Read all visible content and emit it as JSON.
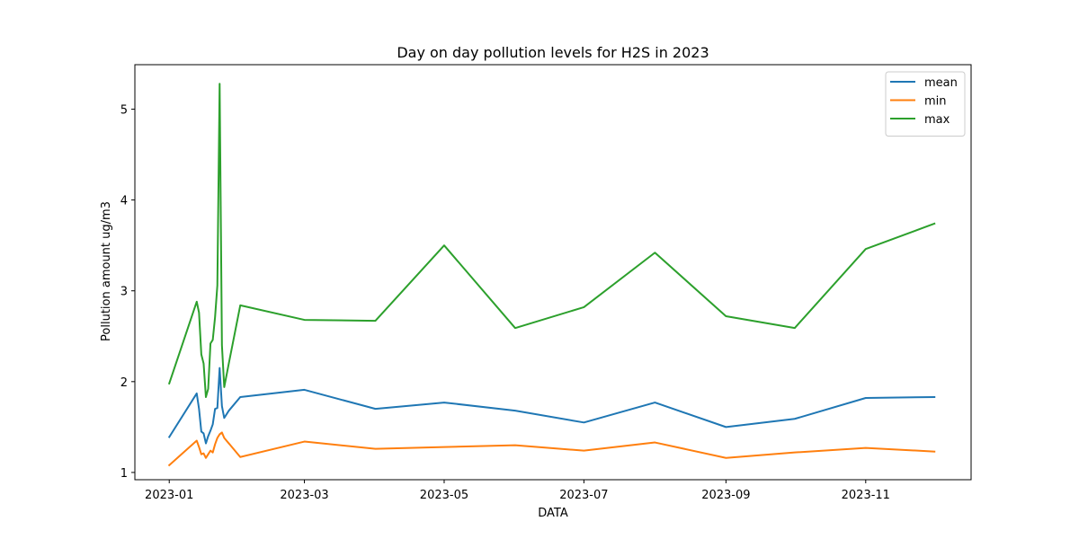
{
  "chart_data": {
    "type": "line",
    "title": "Day on day pollution levels for H2S in 2023",
    "xlabel": "DATA",
    "ylabel": "Pollution amount ug/m3",
    "x_ticks": [
      "2023-01",
      "2023-03",
      "2023-05",
      "2023-07",
      "2023-09",
      "2023-11"
    ],
    "y_ticks": [
      1,
      2,
      3,
      4,
      5
    ],
    "xlim": [
      "2022-12-17",
      "2023-12-17"
    ],
    "ylim": [
      0.92,
      5.49
    ],
    "grid": false,
    "legend_position": "top-right",
    "x": [
      "2023-01-01",
      "2023-01-13",
      "2023-01-14",
      "2023-01-15",
      "2023-01-16",
      "2023-01-17",
      "2023-01-18",
      "2023-01-19",
      "2023-01-20",
      "2023-01-21",
      "2023-01-22",
      "2023-01-23",
      "2023-01-24",
      "2023-01-25",
      "2023-01-27",
      "2023-02-01",
      "2023-03-01",
      "2023-04-01",
      "2023-05-01",
      "2023-06-01",
      "2023-07-01",
      "2023-08-01",
      "2023-09-01",
      "2023-10-01",
      "2023-11-01",
      "2023-12-01"
    ],
    "series": [
      {
        "name": "mean",
        "color": "#1f77b4",
        "values": [
          1.39,
          1.87,
          1.7,
          1.45,
          1.43,
          1.32,
          1.4,
          1.46,
          1.53,
          1.7,
          1.71,
          2.15,
          1.73,
          1.6,
          1.68,
          1.83,
          1.91,
          1.7,
          1.77,
          1.68,
          1.55,
          1.77,
          1.5,
          1.59,
          1.82,
          1.83
        ]
      },
      {
        "name": "min",
        "color": "#ff7f0e",
        "values": [
          1.08,
          1.35,
          1.28,
          1.2,
          1.21,
          1.16,
          1.2,
          1.24,
          1.22,
          1.31,
          1.38,
          1.42,
          1.44,
          1.38,
          1.32,
          1.17,
          1.34,
          1.26,
          1.28,
          1.3,
          1.24,
          1.33,
          1.16,
          1.22,
          1.27,
          1.23
        ]
      },
      {
        "name": "max",
        "color": "#2ca02c",
        "values": [
          1.98,
          2.88,
          2.76,
          2.3,
          2.2,
          1.83,
          1.92,
          2.42,
          2.46,
          2.71,
          3.06,
          5.28,
          2.4,
          1.94,
          2.2,
          2.84,
          2.68,
          2.67,
          3.5,
          2.59,
          2.82,
          3.42,
          2.72,
          2.59,
          3.46,
          3.74
        ]
      }
    ]
  }
}
